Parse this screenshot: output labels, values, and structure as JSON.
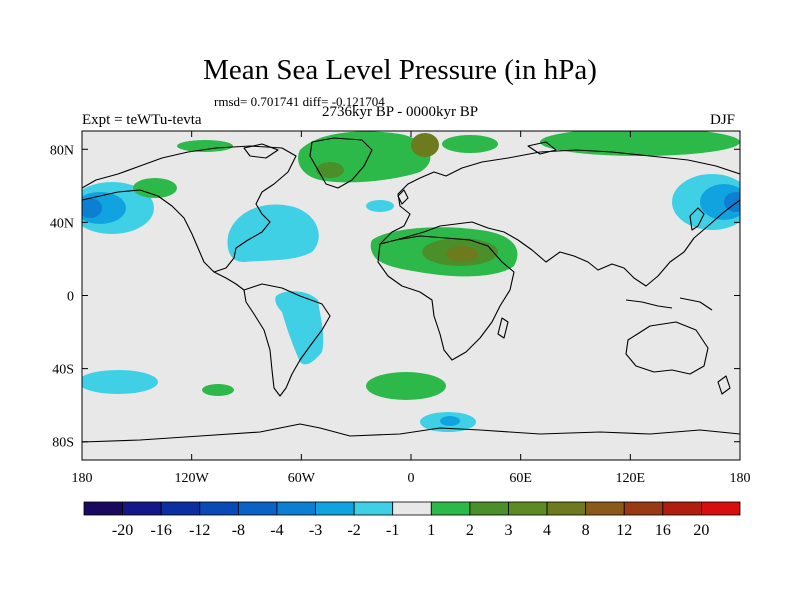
{
  "title": "Mean Sea Level Pressure (in hPa)",
  "stats": "rmsd= 0.701741 diff= -0.121704",
  "experiment": "Expt = teWTu-tevta",
  "period": "2736kyr BP - 0000kyr BP",
  "season": "DJF",
  "map": {
    "lon_range": [
      -180,
      180
    ],
    "lat_range": [
      -90,
      90
    ],
    "lon_ticks": [
      {
        "lon": -180,
        "label": "180"
      },
      {
        "lon": -120,
        "label": "120W"
      },
      {
        "lon": -60,
        "label": "60W"
      },
      {
        "lon": 0,
        "label": "0"
      },
      {
        "lon": 60,
        "label": "60E"
      },
      {
        "lon": 120,
        "label": "120E"
      },
      {
        "lon": 180,
        "label": "180"
      }
    ],
    "lat_ticks": [
      {
        "lat": 80,
        "label": "80N"
      },
      {
        "lat": 40,
        "label": "40N"
      },
      {
        "lat": 0,
        "label": "0"
      },
      {
        "lat": -40,
        "label": "40S"
      },
      {
        "lat": -80,
        "label": "80S"
      }
    ]
  },
  "colorbar": {
    "colors": [
      "#1a0a5e",
      "#14168a",
      "#0c2fa0",
      "#0a4ab6",
      "#0b62c6",
      "#0d7fd2",
      "#11a3e0",
      "#3fd0e6",
      "#e8e8e8",
      "#2db84a",
      "#4a8f2a",
      "#5e8a24",
      "#6e7a1e",
      "#8a5a1a",
      "#9a3a14",
      "#b01e10",
      "#d80e0e"
    ],
    "labels": [
      "-20",
      "-16",
      "-12",
      "-8",
      "-4",
      "-3",
      "-2",
      "-1",
      "1",
      "2",
      "3",
      "4",
      "8",
      "12",
      "16",
      "20"
    ]
  },
  "field_colors": {
    "background": "#e8e8e8",
    "neg1": "#3fd0e6",
    "neg2": "#11a3e0",
    "neg3": "#0d7fd2",
    "pos1": "#2db84a",
    "pos2": "#4a8f2a",
    "pos3": "#6e7a1e"
  }
}
